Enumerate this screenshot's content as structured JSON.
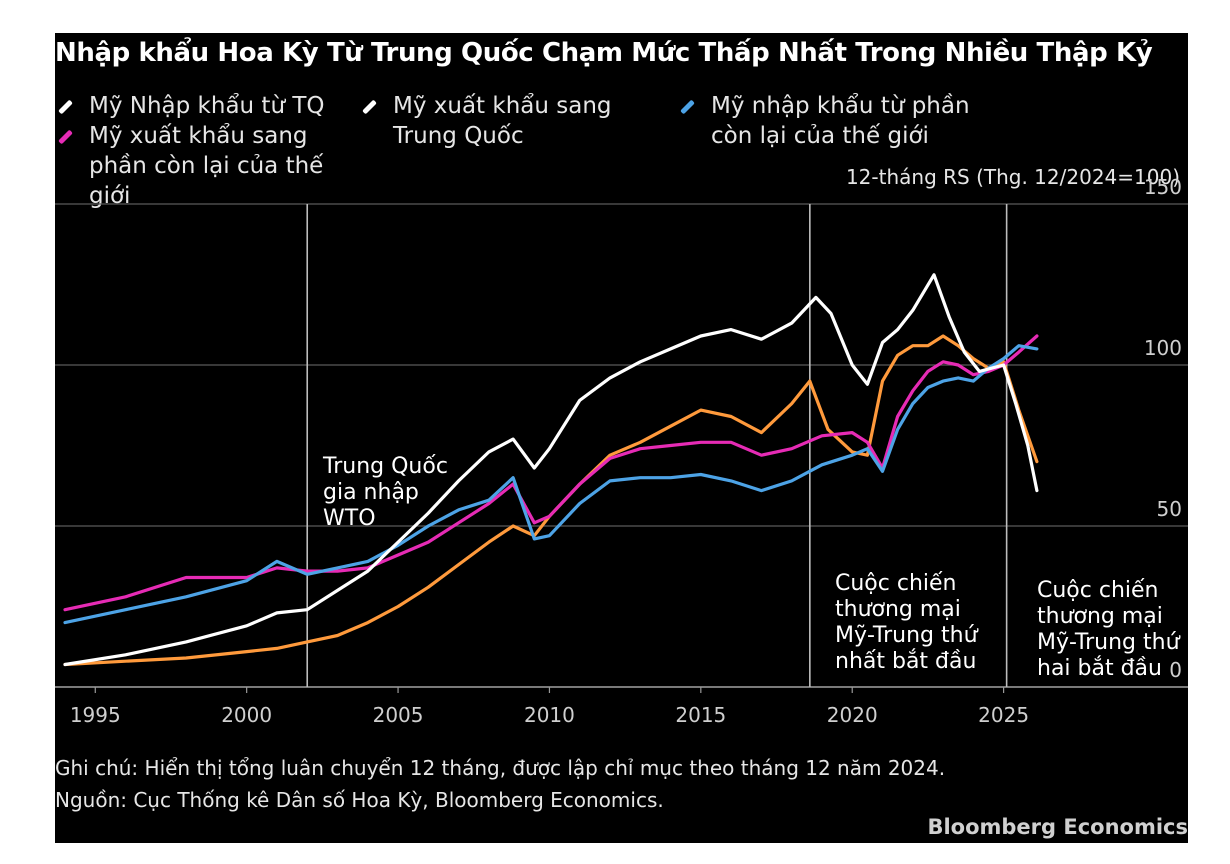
{
  "title": "Nhập khẩu Hoa Kỳ Từ Trung Quốc Chạm Mức Thấp Nhất Trong Nhiều Thập Kỷ",
  "subtitle": "12-tháng RS (Thg. 12/2024=100)",
  "legend": [
    {
      "label": "Mỹ Nhập khẩu từ TQ",
      "color": "#ffffff"
    },
    {
      "label": "Mỹ xuất khẩu sang Trung Quốc",
      "color": "#ffffff"
    },
    {
      "label": "Mỹ nhập khẩu từ phần còn lại của thế giới",
      "color": "#4da3e6"
    },
    {
      "label": "Mỹ xuất khẩu sang phần còn lại của thế giới",
      "color": "#e62bb5"
    }
  ],
  "annotations": {
    "wto": [
      "Trung Quốc",
      "gia nhập",
      "WTO"
    ],
    "trade_war_1": [
      "Cuộc chiến",
      "thương mại",
      "Mỹ-Trung thứ",
      "nhất bắt đầu"
    ],
    "trade_war_2": [
      "Cuộc chiến",
      "thương mại",
      "Mỹ-Trung thứ",
      "hai bắt đầu"
    ]
  },
  "note": "Ghi chú: Hiển thị tổng luân chuyển 12 tháng, được lập chỉ mục theo tháng 12 năm 2024.",
  "source": "Nguồn: Cục Thống kê Dân số Hoa Kỳ, Bloomberg Economics.",
  "brand": "Bloomberg Economics",
  "chart_data": {
    "type": "line",
    "title": "Nhập khẩu Hoa Kỳ Từ Trung Quốc Chạm Mức Thấp Nhất Trong Nhiều Thập Kỷ",
    "ylabel": "12-tháng RS (Thg. 12/2024=100)",
    "xlim": [
      1994,
      2030
    ],
    "ylim": [
      0,
      150
    ],
    "x_ticks": [
      "1995",
      "2000",
      "2005",
      "2010",
      "2015",
      "2020",
      "2025"
    ],
    "x_tick_values": [
      1995,
      2000,
      2005,
      2010,
      2015,
      2020,
      2025
    ],
    "y_ticks": [
      "0",
      "50",
      "100",
      "150"
    ],
    "y_tick_values": [
      0,
      50,
      100,
      150
    ],
    "grid": "horizontal",
    "vlines": [
      2002,
      2018.6,
      2025.1
    ],
    "series": [
      {
        "name": "Mỹ Nhập khẩu từ TQ",
        "color": "#ffffff",
        "x": [
          1994,
          1996,
          1998,
          2000,
          2001,
          2002,
          2003,
          2004,
          2005,
          2006,
          2007,
          2008,
          2008.8,
          2009.5,
          2010,
          2011,
          2012,
          2013,
          2014,
          2015,
          2016,
          2017,
          2018,
          2018.8,
          2019.3,
          2020,
          2020.5,
          2021,
          2021.5,
          2022,
          2022.7,
          2023.2,
          2023.7,
          2024.2,
          2024.6,
          2025,
          2025.4,
          2025.8,
          2026.1
        ],
        "y": [
          7,
          10,
          14,
          19,
          23,
          24,
          30,
          36,
          45,
          54,
          64,
          73,
          77,
          68,
          74,
          89,
          96,
          101,
          105,
          109,
          111,
          108,
          113,
          121,
          116,
          100,
          94,
          107,
          111,
          117,
          128,
          115,
          104,
          98,
          99,
          100,
          88,
          75,
          61
        ]
      },
      {
        "name": "Mỹ xuất khẩu sang Trung Quốc",
        "color": "#ff9a3c",
        "x": [
          1994,
          1996,
          1998,
          2000,
          2001,
          2002,
          2003,
          2004,
          2005,
          2006,
          2007,
          2008,
          2008.8,
          2009.5,
          2010,
          2011,
          2012,
          2013,
          2014,
          2015,
          2016,
          2017,
          2018,
          2018.6,
          2019.2,
          2020,
          2020.5,
          2021,
          2021.5,
          2022,
          2022.5,
          2023,
          2023.5,
          2024,
          2024.5,
          2025,
          2025.5,
          2026.1
        ],
        "y": [
          7,
          8,
          9,
          11,
          12,
          14,
          16,
          20,
          25,
          31,
          38,
          45,
          50,
          47,
          53,
          63,
          72,
          76,
          81,
          86,
          84,
          79,
          88,
          95,
          80,
          73,
          72,
          95,
          103,
          106,
          106,
          109,
          106,
          102,
          99,
          101,
          86,
          70
        ]
      },
      {
        "name": "Mỹ nhập khẩu từ phần còn lại của thế giới",
        "color": "#4da3e6",
        "x": [
          1994,
          1996,
          1998,
          2000,
          2001,
          2002,
          2003,
          2004,
          2005,
          2006,
          2007,
          2008,
          2008.8,
          2009.5,
          2010,
          2011,
          2012,
          2013,
          2014,
          2015,
          2016,
          2017,
          2018,
          2019,
          2020,
          2020.5,
          2021,
          2021.5,
          2022,
          2022.5,
          2023,
          2023.5,
          2024,
          2024.5,
          2025,
          2025.5,
          2026.1
        ],
        "y": [
          20,
          24,
          28,
          33,
          39,
          35,
          37,
          39,
          44,
          50,
          55,
          58,
          65,
          46,
          47,
          57,
          64,
          65,
          65,
          66,
          64,
          61,
          64,
          69,
          72,
          74,
          67,
          80,
          88,
          93,
          95,
          96,
          95,
          99,
          102,
          106,
          105
        ]
      },
      {
        "name": "Mỹ xuất khẩu sang phần còn lại của thế giới",
        "color": "#e62bb5",
        "x": [
          1994,
          1996,
          1998,
          2000,
          2001,
          2002,
          2003,
          2004,
          2005,
          2006,
          2007,
          2008,
          2008.8,
          2009.5,
          2010,
          2011,
          2012,
          2013,
          2014,
          2015,
          2016,
          2017,
          2018,
          2019,
          2020,
          2020.5,
          2021,
          2021.5,
          2022,
          2022.5,
          2023,
          2023.5,
          2024,
          2024.5,
          2025,
          2025.5,
          2026.1
        ],
        "y": [
          24,
          28,
          34,
          34,
          37,
          36,
          36,
          37,
          41,
          45,
          51,
          57,
          63,
          51,
          53,
          63,
          71,
          74,
          75,
          76,
          76,
          72,
          74,
          78,
          79,
          76,
          68,
          84,
          92,
          98,
          101,
          100,
          97,
          98,
          100,
          104,
          109
        ]
      }
    ]
  }
}
